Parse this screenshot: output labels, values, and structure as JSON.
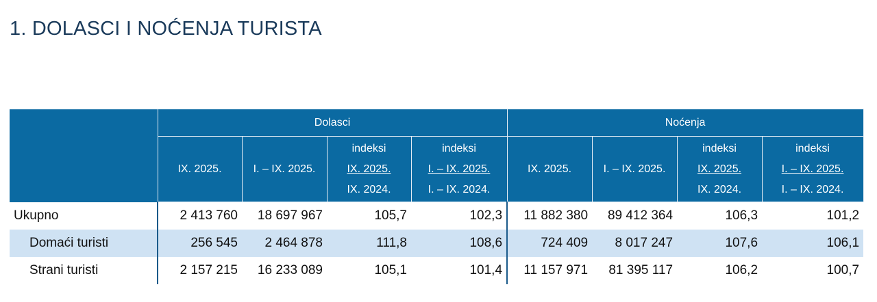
{
  "title": "1. DOLASCI I NOĆENJA TURISTA",
  "header": {
    "groups": [
      "Dolasci",
      "Noćenja"
    ],
    "columns": [
      {
        "line1": "",
        "line2": "IX. 2025.",
        "line3": ""
      },
      {
        "line1": "",
        "line2": "I. – IX. 2025.",
        "line3": ""
      },
      {
        "line1": "indeksi",
        "line2": "IX. 2025.",
        "line3": "IX. 2024."
      },
      {
        "line1": "indeksi",
        "line2": "I. – IX. 2025.",
        "line3": "I. – IX. 2024."
      },
      {
        "line1": "",
        "line2": "IX. 2025.",
        "line3": ""
      },
      {
        "line1": "",
        "line2": "I. – IX. 2025.",
        "line3": ""
      },
      {
        "line1": "indeksi",
        "line2": "IX. 2025.",
        "line3": "IX. 2024."
      },
      {
        "line1": "indeksi",
        "line2": "I. – IX. 2025.",
        "line3": "I. – IX. 2024."
      }
    ]
  },
  "rows": [
    {
      "label": "Ukupno",
      "values": [
        "2 413 760",
        "18 697 967",
        "105,7",
        "102,3",
        "11 882 380",
        "89 412 364",
        "106,3",
        "101,2"
      ]
    },
    {
      "label": "Domaći turisti",
      "values": [
        "256 545",
        "2 464 878",
        "111,8",
        "108,6",
        "724 409",
        "8 017 247",
        "107,6",
        "106,1"
      ]
    },
    {
      "label": "Strani turisti",
      "values": [
        "2 157 215",
        "16 233 089",
        "105,1",
        "101,4",
        "11 157 971",
        "81 395 117",
        "106,2",
        "100,7"
      ]
    }
  ],
  "colors": {
    "header_bg": "#0b6aa2",
    "stripe_bg": "#cfe2f3",
    "title": "#1a3a5a"
  }
}
